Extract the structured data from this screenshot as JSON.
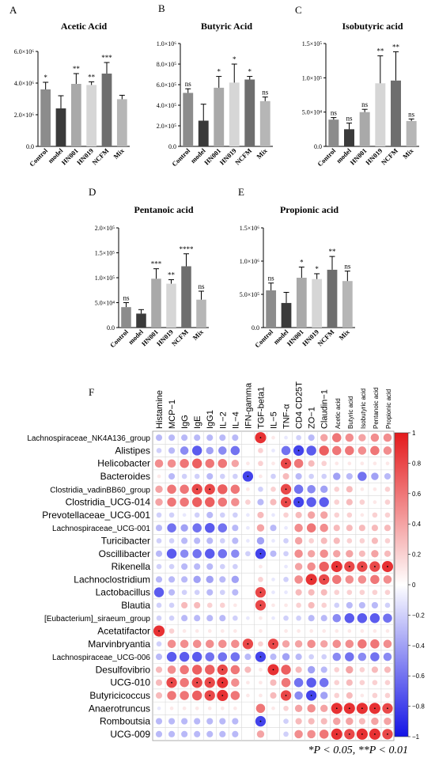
{
  "chart_data": [
    {
      "panel": "A",
      "type": "bar",
      "title": "Acetic Acid",
      "categories": [
        "Control",
        "model",
        "HN001",
        "HN019",
        "NCFM",
        "Mix"
      ],
      "values": [
        3600000,
        2400000,
        3950000,
        3880000,
        4600000,
        2980000
      ],
      "errors": [
        450000,
        800000,
        650000,
        200000,
        700000,
        250000
      ],
      "significance": [
        "*",
        "",
        "**",
        "**",
        "***",
        ""
      ],
      "yticks": [
        "0.0",
        "2.0×10⁶",
        "4.0×10⁶",
        "6.0×10⁶"
      ],
      "ylim": [
        0,
        6000000
      ]
    },
    {
      "panel": "B",
      "type": "bar",
      "title": "Butyric Acid",
      "categories": [
        "Control",
        "model",
        "HN001",
        "HN019",
        "NCFM",
        "Mix"
      ],
      "values": [
        520000,
        250000,
        570000,
        620000,
        650000,
        440000
      ],
      "errors": [
        40000,
        160000,
        110000,
        180000,
        30000,
        40000
      ],
      "significance": [
        "ns",
        "",
        "*",
        "*",
        "*",
        "ns"
      ],
      "yticks": [
        "0.0",
        "2.0×10⁵",
        "4.0×10⁵",
        "6.0×10⁵",
        "8.0×10⁵",
        "1.0×10⁶"
      ],
      "ylim": [
        0,
        1000000
      ]
    },
    {
      "panel": "C",
      "type": "bar",
      "title": "Isobutyric acid",
      "categories": [
        "Control",
        "model",
        "HN001",
        "HN019",
        "NCFM",
        "Mix"
      ],
      "values": [
        39000,
        25000,
        50000,
        92000,
        96000,
        37000
      ],
      "errors": [
        3000,
        9000,
        4000,
        40000,
        42000,
        3000
      ],
      "significance": [
        "ns",
        "ns",
        "ns",
        "**",
        "**",
        "ns"
      ],
      "yticks": [
        "0.0",
        "5.0×10⁴",
        "1.0×10⁵",
        "1.5×10⁵"
      ],
      "ylim": [
        0,
        150000
      ]
    },
    {
      "panel": "D",
      "type": "bar",
      "title": "Pentanoic acid",
      "categories": [
        "Control",
        "model",
        "HN001",
        "HN019",
        "NCFM",
        "Mix"
      ],
      "values": [
        41000,
        28000,
        98000,
        88000,
        123000,
        56000
      ],
      "errors": [
        9000,
        8000,
        20000,
        8000,
        25000,
        17000
      ],
      "significance": [
        "ns",
        "",
        "***",
        "**",
        "****",
        "ns"
      ],
      "yticks": [
        "0.0",
        "5.0×10⁴",
        "1.0×10⁵",
        "1.5×10⁵",
        "2.0×10⁵"
      ],
      "ylim": [
        0,
        200000
      ]
    },
    {
      "panel": "E",
      "type": "bar",
      "title": "Propionic acid",
      "categories": [
        "Control",
        "model",
        "HN001",
        "HN019",
        "NCFM",
        "Mix"
      ],
      "values": [
        560000,
        370000,
        750000,
        730000,
        870000,
        700000
      ],
      "errors": [
        110000,
        160000,
        160000,
        80000,
        200000,
        150000
      ],
      "significance": [
        "ns",
        "",
        "*",
        "*",
        "**",
        "ns"
      ],
      "yticks": [
        "0.0",
        "5.0×10⁵",
        "1.0×10⁶",
        "1.5×10⁶"
      ],
      "ylim": [
        0,
        1500000
      ]
    },
    {
      "panel": "F",
      "type": "heatmap",
      "columns": [
        "Histamine",
        "MCP−1",
        "IgG",
        "IgE",
        "IgG1",
        "IL−2",
        "IL−4",
        "IFN-gamma",
        "TGF-beta1",
        "IL−5",
        "TNF-α",
        "CD4 CD25T",
        "ZO−1",
        "Claudin−1",
        "Acetic acid",
        "Butyric acid",
        "Isobutyric acid",
        "Pentanoic acid",
        "Propionic acid"
      ],
      "rows": [
        "Lachnospiraceae_NK4A136_group",
        "Alistipes",
        "Helicobacter",
        "Bacteroides",
        "Clostridia_vadinBB60_group",
        "Clostridia_UCG-014",
        "Prevotellaceae_UCG-001",
        "Lachnospiraceae_UCG-001",
        "Turicibacter",
        "Oscillibacter",
        "Rikenella",
        "Lachnoclostridium",
        "Lactobacillus",
        "Blautia",
        "[Eubacterium]_siraeum_group",
        "Acetatifactor",
        "Marvinbryantia",
        "Lachnospiraceae_UCG-006",
        "Desulfovibrio",
        "UCG-010",
        "Butyricicoccus",
        "Anaerotruncus",
        "Romboutsia",
        "UCG-009"
      ],
      "values": [
        [
          -0.3,
          -0.3,
          -0.3,
          -0.3,
          -0.3,
          -0.3,
          -0.3,
          0.0,
          0.9,
          0.1,
          -0.1,
          -0.2,
          -0.3,
          0.4,
          0.6,
          0.5,
          0.4,
          0.5,
          0.5
        ],
        [
          -0.2,
          -0.3,
          -0.5,
          -0.7,
          -0.4,
          -0.5,
          -0.6,
          0.0,
          0.2,
          -0.1,
          -0.6,
          -0.8,
          -0.7,
          0.7,
          0.6,
          0.6,
          0.5,
          0.6,
          0.5
        ],
        [
          0.5,
          0.5,
          0.6,
          0.7,
          0.6,
          0.6,
          0.4,
          0.1,
          0.2,
          0.1,
          0.8,
          0.6,
          0.3,
          0.2,
          0.1,
          0.1,
          0.1,
          0.1,
          0.1
        ],
        [
          0.1,
          -0.3,
          -0.2,
          -0.2,
          -0.3,
          -0.2,
          -0.2,
          -0.8,
          0.1,
          -0.2,
          0.3,
          -0.3,
          -0.2,
          -0.2,
          -0.4,
          -0.3,
          -0.6,
          -0.4,
          -0.3
        ],
        [
          0.4,
          0.6,
          0.6,
          0.8,
          0.8,
          0.7,
          0.6,
          0.1,
          -0.2,
          0.2,
          0.8,
          -0.6,
          -0.5,
          -0.4,
          0.2,
          0.3,
          0.1,
          0.1,
          0.2
        ],
        [
          0.4,
          0.6,
          0.6,
          0.7,
          0.7,
          0.6,
          0.5,
          0.2,
          -0.3,
          0.3,
          0.8,
          -0.8,
          -0.7,
          -0.7,
          0.2,
          0.3,
          0.2,
          0.1,
          0.2
        ],
        [
          -0.2,
          -0.2,
          -0.1,
          -0.2,
          -0.3,
          -0.2,
          -0.2,
          -0.1,
          0.3,
          -0.1,
          0.2,
          0.3,
          0.4,
          0.4,
          0.2,
          0.2,
          0.1,
          0.2,
          0.2
        ],
        [
          -0.3,
          -0.6,
          -0.4,
          -0.6,
          -0.7,
          -0.6,
          -0.3,
          -0.1,
          0.4,
          -0.3,
          -0.1,
          0.5,
          0.6,
          0.5,
          0.3,
          0.3,
          0.3,
          0.3,
          0.3
        ],
        [
          -0.2,
          -0.2,
          -0.3,
          -0.3,
          -0.3,
          -0.2,
          -0.3,
          -0.1,
          -0.4,
          -0.1,
          -0.2,
          0.4,
          0.2,
          0.3,
          0.3,
          0.2,
          0.2,
          0.3,
          0.2
        ],
        [
          -0.3,
          -0.7,
          -0.5,
          -0.6,
          -0.7,
          -0.6,
          -0.5,
          -0.2,
          -0.8,
          -0.3,
          -0.2,
          0.5,
          0.4,
          0.5,
          0.4,
          0.4,
          0.3,
          0.4,
          0.3
        ],
        [
          -0.2,
          -0.2,
          -0.3,
          -0.3,
          -0.3,
          -0.2,
          -0.2,
          0.0,
          0.1,
          0.0,
          -0.1,
          0.4,
          0.5,
          0.7,
          0.9,
          0.8,
          0.8,
          0.8,
          0.9
        ],
        [
          -0.3,
          -0.3,
          -0.3,
          -0.4,
          -0.4,
          -0.3,
          -0.4,
          0.0,
          0.2,
          -0.1,
          -0.2,
          0.5,
          0.9,
          0.8,
          0.6,
          0.5,
          0.5,
          0.6,
          0.5
        ],
        [
          -0.7,
          -0.3,
          -0.2,
          -0.2,
          -0.3,
          -0.2,
          -0.3,
          0.0,
          0.8,
          -0.1,
          -0.1,
          0.3,
          0.3,
          0.3,
          0.2,
          0.2,
          0.2,
          0.2,
          0.2
        ],
        [
          -0.2,
          -0.2,
          0.3,
          0.3,
          0.2,
          0.2,
          0.1,
          0.0,
          0.8,
          0.1,
          0.1,
          0.2,
          0.3,
          0.2,
          -0.2,
          -0.3,
          -0.3,
          -0.3,
          -0.2
        ],
        [
          -0.2,
          -0.2,
          -0.3,
          -0.3,
          -0.3,
          -0.3,
          -0.2,
          -0.1,
          0.1,
          -0.1,
          -0.2,
          -0.2,
          -0.3,
          -0.3,
          -0.5,
          -0.7,
          -0.7,
          -0.7,
          -0.6
        ],
        [
          0.9,
          0.2,
          0.1,
          0.1,
          0.1,
          0.1,
          0.1,
          0.0,
          0.1,
          0.0,
          0.1,
          0.1,
          0.1,
          0.1,
          0.1,
          0.1,
          0.1,
          0.1,
          0.1
        ],
        [
          -0.2,
          0.5,
          0.5,
          0.5,
          0.5,
          0.5,
          0.5,
          0.8,
          0.2,
          0.8,
          0.4,
          0.4,
          0.5,
          0.4,
          0.5,
          0.5,
          0.6,
          0.6,
          0.5
        ],
        [
          -0.3,
          -0.7,
          -0.7,
          -0.7,
          -0.6,
          -0.6,
          -0.6,
          -0.3,
          -0.8,
          -0.3,
          -0.4,
          -0.3,
          -0.2,
          -0.2,
          -0.5,
          -0.6,
          -0.5,
          -0.6,
          -0.5
        ],
        [
          0.3,
          0.5,
          0.6,
          0.7,
          0.7,
          0.8,
          0.6,
          0.3,
          0.1,
          0.9,
          0.7,
          0.3,
          -0.4,
          -0.3,
          0.2,
          0.4,
          0.2,
          0.3,
          0.3
        ],
        [
          0.3,
          0.8,
          0.6,
          0.8,
          0.8,
          0.9,
          0.5,
          0.1,
          0.1,
          0.3,
          0.6,
          -0.6,
          -0.7,
          -0.6,
          0.2,
          0.3,
          0.2,
          0.2,
          0.2
        ],
        [
          0.3,
          0.6,
          0.6,
          0.7,
          0.8,
          0.9,
          0.6,
          0.1,
          0.1,
          0.3,
          0.8,
          -0.5,
          -0.8,
          -0.4,
          0.2,
          0.3,
          0.1,
          0.2,
          0.2
        ],
        [
          -0.1,
          0.1,
          0.1,
          0.1,
          0.1,
          0.1,
          0.1,
          0.0,
          0.6,
          0.1,
          0.2,
          0.4,
          0.5,
          0.4,
          0.9,
          0.9,
          0.9,
          0.9,
          0.8
        ],
        [
          -0.3,
          -0.3,
          -0.3,
          -0.3,
          -0.3,
          -0.3,
          -0.3,
          0.0,
          -0.8,
          0.0,
          -0.2,
          0.3,
          0.3,
          0.3,
          0.4,
          0.4,
          0.3,
          0.4,
          0.4
        ],
        [
          -0.3,
          -0.3,
          -0.3,
          -0.3,
          -0.3,
          -0.3,
          -0.3,
          0.0,
          0.4,
          0.0,
          -0.2,
          0.5,
          0.5,
          0.6,
          0.9,
          0.8,
          0.9,
          0.9,
          0.8
        ]
      ],
      "colorbar_ticks": [
        "1",
        "0.8",
        "0.6",
        "0.4",
        "0.2",
        "0",
        "−0.2",
        "−0.4",
        "−0.6",
        "−0.8",
        "−1"
      ],
      "colors": {
        "positive": "#e41a1c",
        "negative": "#1414e6",
        "neutral": "#ffffff"
      }
    }
  ],
  "panel_letters": [
    "A",
    "B",
    "C",
    "D",
    "E",
    "F"
  ],
  "footnote": "*P < 0.05, **P < 0.01",
  "bar_colors": [
    "#8c8c8c",
    "#3a3a3a",
    "#a9a9a9",
    "#d6d6d6",
    "#6e6e6e",
    "#b6b6b6"
  ]
}
